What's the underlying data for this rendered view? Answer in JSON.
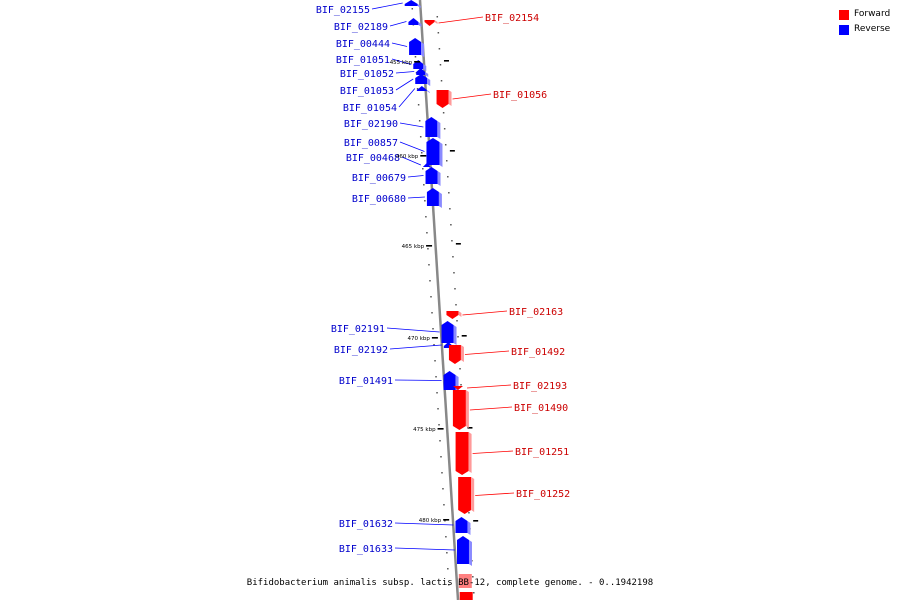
{
  "caption": "Bifidobacterium animalis subsp. lactis BB-12, complete genome. - 0..1942198",
  "legend": [
    {
      "label": "Forward",
      "color": "#ff0000"
    },
    {
      "label": "Reverse",
      "color": "#0000ff"
    }
  ],
  "colors": {
    "forward": "#ff0000",
    "reverse": "#0000ff",
    "forward_label": "#cc0000",
    "reverse_label": "#0000cc",
    "backbone": "#888888"
  },
  "scale_marks": [
    {
      "label": "455 kbp"
    },
    {
      "label": "460 kbp"
    },
    {
      "label": "465 kbp"
    },
    {
      "label": "470 kbp"
    },
    {
      "label": "475 kbp"
    },
    {
      "label": "480 kbp"
    }
  ],
  "genes_reverse": [
    {
      "name": "BIF_02155"
    },
    {
      "name": "BIF_02189"
    },
    {
      "name": "BIF_00444"
    },
    {
      "name": "BIF_01051"
    },
    {
      "name": "BIF_01052"
    },
    {
      "name": "BIF_01053"
    },
    {
      "name": "BIF_01054"
    },
    {
      "name": "BIF_02190"
    },
    {
      "name": "BIF_00857"
    },
    {
      "name": "BIF_00468"
    },
    {
      "name": "BIF_00679"
    },
    {
      "name": "BIF_00680"
    },
    {
      "name": "BIF_02191"
    },
    {
      "name": "BIF_02192"
    },
    {
      "name": "BIF_01491"
    },
    {
      "name": "BIF_01632"
    },
    {
      "name": "BIF_01633"
    }
  ],
  "genes_forward": [
    {
      "name": "BIF_02154"
    },
    {
      "name": "BIF_01056"
    },
    {
      "name": "BIF_02163"
    },
    {
      "name": "BIF_01492"
    },
    {
      "name": "BIF_02193"
    },
    {
      "name": "BIF_01490"
    },
    {
      "name": "BIF_01251"
    },
    {
      "name": "BIF_01252"
    }
  ]
}
